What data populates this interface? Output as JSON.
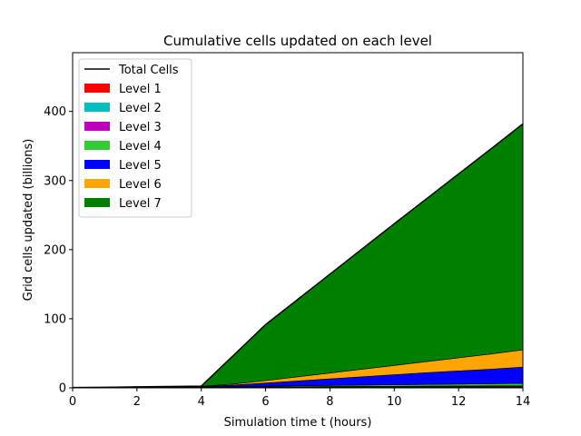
{
  "chart_data": {
    "type": "area",
    "title": "Cumulative cells updated on each level",
    "xlabel": "Simulation time t (hours)",
    "ylabel": "Grid cells updated (billions)",
    "xlim": [
      0,
      14
    ],
    "ylim": [
      0,
      485
    ],
    "xticks": [
      0,
      2,
      4,
      6,
      8,
      10,
      12,
      14
    ],
    "yticks": [
      0,
      100,
      200,
      300,
      400
    ],
    "grid": false,
    "legend_position": "top-left",
    "x": [
      0,
      1,
      2,
      3,
      4,
      5,
      6,
      7,
      8,
      9,
      10,
      11,
      12,
      13,
      14
    ],
    "series": [
      {
        "name": "Level 1",
        "color": "#ff0000",
        "values": [
          0.3,
          0.35,
          0.4,
          0.45,
          0.5,
          0.55,
          0.6,
          0.65,
          0.7,
          0.75,
          0.8,
          0.85,
          0.9,
          0.95,
          1.0
        ]
      },
      {
        "name": "Level 2",
        "color": "#00bfbf",
        "values": [
          0.1,
          0.15,
          0.2,
          0.25,
          0.3,
          0.35,
          0.4,
          0.45,
          0.5,
          0.55,
          0.6,
          0.65,
          0.7,
          0.75,
          0.8
        ]
      },
      {
        "name": "Level 3",
        "color": "#bf00bf",
        "values": [
          0.1,
          0.15,
          0.2,
          0.25,
          0.3,
          0.4,
          0.5,
          0.6,
          0.7,
          0.8,
          0.9,
          1.0,
          1.1,
          1.2,
          1.3
        ]
      },
      {
        "name": "Level 4",
        "color": "#32cd32",
        "values": [
          0,
          0.1,
          0.2,
          0.3,
          0.4,
          0.7,
          1.0,
          1.3,
          1.6,
          1.9,
          2.2,
          2.5,
          2.8,
          3.1,
          3.4
        ]
      },
      {
        "name": "Level 5",
        "color": "#0000ff",
        "values": [
          0,
          0.1,
          0.3,
          0.4,
          0.5,
          2.0,
          4.5,
          7.0,
          9.5,
          12.0,
          14.5,
          17.0,
          19.0,
          21.0,
          23.5
        ]
      },
      {
        "name": "Level 6",
        "color": "#ffa500",
        "values": [
          0,
          0,
          0.1,
          0.1,
          0.2,
          1.5,
          3.5,
          6.0,
          8.5,
          11.0,
          13.5,
          16.0,
          19.0,
          22.0,
          25.0
        ]
      },
      {
        "name": "Level 7",
        "color": "#008000",
        "values": [
          0,
          0,
          0,
          0.2,
          0.3,
          41.5,
          81.0,
          112.0,
          143.0,
          174.0,
          205.0,
          235.5,
          266.0,
          296.5,
          327.0
        ]
      }
    ],
    "total_series": {
      "name": "Total Cells",
      "color": "#000000"
    },
    "legend": [
      "Total Cells",
      "Level 1",
      "Level 2",
      "Level 3",
      "Level 4",
      "Level 5",
      "Level 6",
      "Level 7"
    ]
  }
}
